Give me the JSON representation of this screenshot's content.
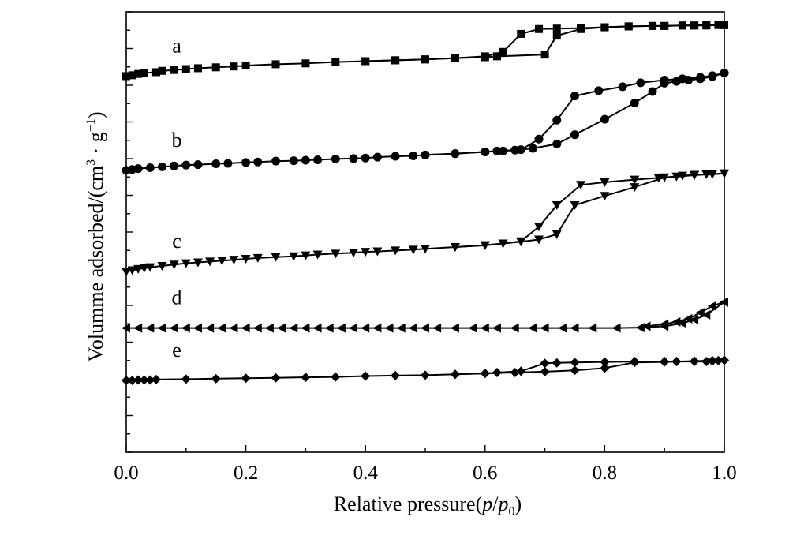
{
  "chart_data": {
    "type": "line",
    "xlabel": "Relative pressure(p/p0)",
    "xlabel_parts": {
      "main": "Relative pressure(",
      "p1": "p",
      "slash": "/",
      "p2": "p",
      "sub": "0",
      "close": ")"
    },
    "ylabel": "Volumme adsorbed/(cm³ · g⁻¹)",
    "ylabel_parts": {
      "main": "Volumme adsorbed/(cm",
      "sup1": "3",
      "dot": " · g",
      "sup2": "−1",
      "close": ")"
    },
    "xlim": [
      0.0,
      1.0
    ],
    "ylim": [
      0,
      100
    ],
    "x_ticks": [
      "0.0",
      "0.2",
      "0.4",
      "0.6",
      "0.8",
      "1.0"
    ],
    "y_tick_labels_shown": false,
    "grid": false,
    "legend": "none",
    "series": [
      {
        "name": "a",
        "marker": "square",
        "adsorption": {
          "x": [
            0.0,
            0.01,
            0.02,
            0.03,
            0.05,
            0.06,
            0.08,
            0.1,
            0.12,
            0.15,
            0.18,
            0.2,
            0.25,
            0.3,
            0.35,
            0.4,
            0.45,
            0.5,
            0.55,
            0.6,
            0.62,
            0.7,
            0.72,
            0.76,
            0.8,
            0.84,
            0.88,
            0.9,
            0.93,
            0.95,
            0.97,
            0.99,
            1.0
          ],
          "y": [
            85.4,
            85.6,
            85.9,
            86.1,
            86.3,
            86.6,
            86.8,
            87.0,
            87.2,
            87.4,
            87.6,
            87.8,
            88.1,
            88.3,
            88.6,
            88.8,
            89.0,
            89.2,
            89.5,
            89.7,
            89.9,
            90.3,
            94.6,
            96.1,
            96.5,
            96.7,
            96.8,
            96.8,
            96.9,
            96.9,
            96.9,
            97.0,
            97.0
          ]
        },
        "desorption": {
          "x": [
            1.0,
            0.97,
            0.95,
            0.93,
            0.9,
            0.88,
            0.84,
            0.8,
            0.76,
            0.72,
            0.69,
            0.66,
            0.63,
            0.6,
            0.55,
            0.5,
            0.45,
            0.4
          ],
          "y": [
            97.0,
            97.0,
            96.9,
            96.9,
            96.8,
            96.8,
            96.7,
            96.5,
            96.3,
            96.2,
            96.1,
            95.0,
            90.9,
            89.9,
            89.5,
            89.2,
            89.0,
            88.8
          ]
        }
      },
      {
        "name": "b",
        "marker": "circle",
        "adsorption": {
          "x": [
            0.0,
            0.01,
            0.02,
            0.04,
            0.06,
            0.08,
            0.1,
            0.12,
            0.15,
            0.17,
            0.2,
            0.22,
            0.25,
            0.28,
            0.3,
            0.32,
            0.35,
            0.38,
            0.4,
            0.42,
            0.45,
            0.48,
            0.5,
            0.55,
            0.6,
            0.62,
            0.65,
            0.68,
            0.72,
            0.75,
            0.8,
            0.85,
            0.88,
            0.9,
            0.92,
            0.94,
            0.96,
            0.98,
            1.0
          ],
          "y": [
            64.0,
            64.2,
            64.4,
            64.6,
            64.8,
            65.0,
            65.2,
            65.3,
            65.5,
            65.6,
            65.8,
            65.9,
            66.1,
            66.2,
            66.3,
            66.4,
            66.6,
            66.7,
            66.8,
            67.0,
            67.2,
            67.3,
            67.5,
            67.8,
            68.2,
            68.4,
            68.6,
            69.0,
            70.0,
            72.1,
            75.6,
            79.3,
            81.9,
            83.8,
            84.2,
            84.5,
            84.8,
            85.3,
            86.1
          ]
        },
        "desorption": {
          "x": [
            1.0,
            0.98,
            0.96,
            0.93,
            0.9,
            0.86,
            0.83,
            0.79,
            0.75,
            0.72,
            0.69,
            0.66,
            0.63,
            0.6,
            0.55,
            0.5
          ],
          "y": [
            86.1,
            85.5,
            85.1,
            84.8,
            84.5,
            83.9,
            83.0,
            82.1,
            80.9,
            75.4,
            71.1,
            68.7,
            68.4,
            68.2,
            67.8,
            67.5
          ]
        }
      },
      {
        "name": "c",
        "marker": "triangle-down",
        "adsorption": {
          "x": [
            0.0,
            0.01,
            0.02,
            0.03,
            0.04,
            0.06,
            0.08,
            0.1,
            0.12,
            0.14,
            0.16,
            0.18,
            0.2,
            0.22,
            0.25,
            0.28,
            0.3,
            0.32,
            0.35,
            0.38,
            0.4,
            0.42,
            0.45,
            0.48,
            0.5,
            0.55,
            0.6,
            0.63,
            0.66,
            0.69,
            0.72,
            0.75,
            0.8,
            0.85,
            0.9,
            0.93,
            0.95,
            0.98,
            1.0
          ],
          "y": [
            41.0,
            41.3,
            41.6,
            41.8,
            42.0,
            42.3,
            42.6,
            42.9,
            43.1,
            43.3,
            43.5,
            43.7,
            43.9,
            44.1,
            44.3,
            44.5,
            44.7,
            44.9,
            45.1,
            45.3,
            45.5,
            45.6,
            45.8,
            46.0,
            46.2,
            46.6,
            47.0,
            47.4,
            47.8,
            48.3,
            49.5,
            56.1,
            58.2,
            60.2,
            62.4,
            62.8,
            63.0,
            63.1,
            63.3
          ]
        },
        "desorption": {
          "x": [
            1.0,
            0.97,
            0.95,
            0.92,
            0.89,
            0.85,
            0.8,
            0.76,
            0.72,
            0.69,
            0.66,
            0.63,
            0.6,
            0.55
          ],
          "y": [
            63.3,
            63.1,
            62.9,
            62.6,
            62.3,
            61.9,
            61.3,
            60.7,
            56.1,
            51.2,
            47.9,
            47.4,
            47.0,
            46.6
          ]
        }
      },
      {
        "name": "d",
        "marker": "triangle-left",
        "adsorption": {
          "x": [
            0.0,
            0.02,
            0.04,
            0.06,
            0.08,
            0.1,
            0.12,
            0.14,
            0.16,
            0.18,
            0.2,
            0.22,
            0.24,
            0.26,
            0.28,
            0.3,
            0.32,
            0.34,
            0.36,
            0.38,
            0.4,
            0.42,
            0.44,
            0.46,
            0.48,
            0.5,
            0.52,
            0.55,
            0.58,
            0.6,
            0.62,
            0.65,
            0.68,
            0.7,
            0.73,
            0.75,
            0.78,
            0.82,
            0.86,
            0.9,
            0.93,
            0.95,
            0.97,
            1.0
          ],
          "y": [
            28.2,
            28.2,
            28.2,
            28.2,
            28.2,
            28.2,
            28.2,
            28.2,
            28.2,
            28.2,
            28.2,
            28.2,
            28.2,
            28.2,
            28.2,
            28.2,
            28.2,
            28.2,
            28.2,
            28.2,
            28.2,
            28.2,
            28.2,
            28.2,
            28.2,
            28.2,
            28.2,
            28.2,
            28.2,
            28.2,
            28.2,
            28.2,
            28.2,
            28.2,
            28.2,
            28.2,
            28.2,
            28.2,
            28.3,
            28.6,
            29.3,
            30.1,
            31.2,
            34.1
          ]
        },
        "desorption": {
          "x": [
            1.0,
            0.98,
            0.96,
            0.94,
            0.92,
            0.9,
            0.87
          ],
          "y": [
            34.1,
            33.2,
            31.7,
            30.3,
            29.6,
            29.1,
            28.6
          ]
        }
      },
      {
        "name": "e",
        "marker": "diamond",
        "adsorption": {
          "x": [
            0.0,
            0.01,
            0.02,
            0.03,
            0.04,
            0.05,
            0.1,
            0.15,
            0.2,
            0.25,
            0.3,
            0.35,
            0.4,
            0.45,
            0.5,
            0.55,
            0.6,
            0.65,
            0.7,
            0.75,
            0.8,
            0.85,
            0.9,
            0.92,
            0.95,
            0.97,
            0.98,
            0.99,
            1.0
          ],
          "y": [
            16.3,
            16.3,
            16.4,
            16.4,
            16.4,
            16.5,
            16.6,
            16.7,
            16.8,
            16.9,
            17.0,
            17.1,
            17.3,
            17.4,
            17.5,
            17.7,
            17.9,
            18.1,
            18.3,
            18.6,
            19.1,
            20.4,
            20.5,
            20.6,
            20.6,
            20.6,
            20.7,
            20.8,
            20.9
          ]
        },
        "desorption": {
          "x": [
            1.0,
            0.98,
            0.95,
            0.92,
            0.9,
            0.85,
            0.8,
            0.75,
            0.72,
            0.7,
            0.66,
            0.62,
            0.6,
            0.55
          ],
          "y": [
            20.9,
            20.8,
            20.7,
            20.6,
            20.6,
            20.6,
            20.5,
            20.4,
            20.3,
            20.2,
            18.4,
            18.1,
            17.9,
            17.7
          ]
        }
      }
    ]
  }
}
